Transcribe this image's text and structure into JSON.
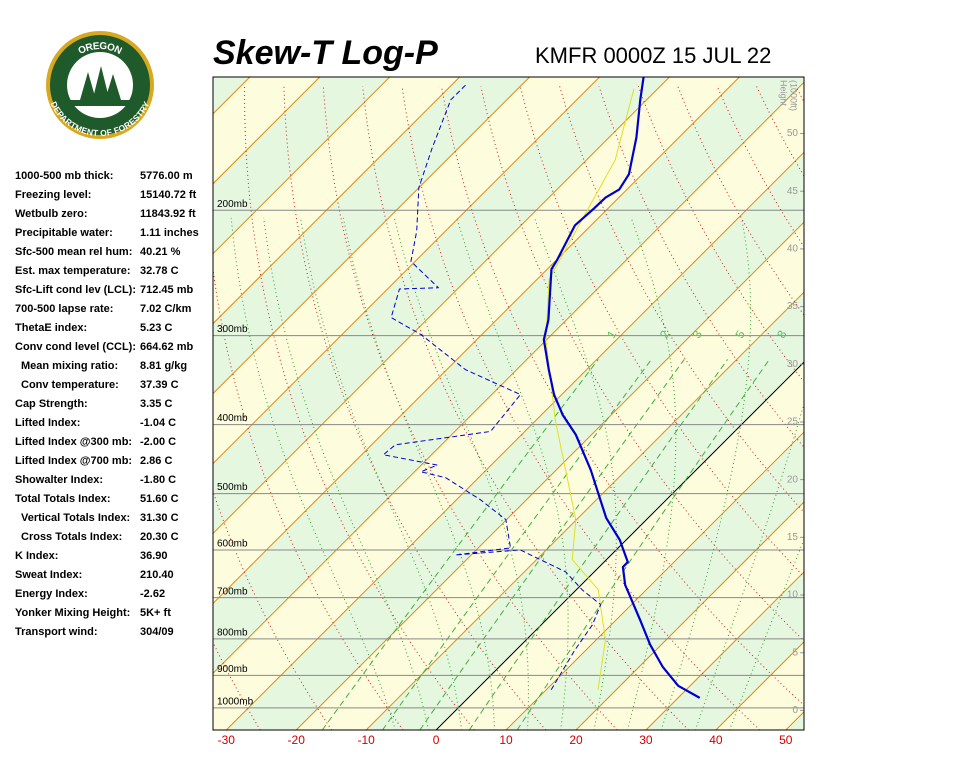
{
  "logo": {
    "top": "OREGON",
    "bottom": "DEPARTMENT OF FORESTRY"
  },
  "indices": [
    [
      "1000-500 mb thick:",
      "5776.00 m"
    ],
    [
      "Freezing level:",
      "15140.72 ft"
    ],
    [
      "Wetbulb zero:",
      "11843.92 ft"
    ],
    [
      "Precipitable water:",
      "1.11 inches"
    ],
    [
      "Sfc-500 mean rel hum:",
      "40.21 %"
    ],
    [
      "Est. max temperature:",
      "32.78 C"
    ],
    [
      "Sfc-Lift cond lev (LCL):",
      "712.45 mb"
    ],
    [
      "700-500 lapse rate:",
      "7.02 C/km"
    ],
    [
      "ThetaE index:",
      "5.23 C"
    ],
    [
      "Conv cond level (CCL):",
      "664.62 mb"
    ],
    [
      "Mean mixing ratio:",
      "8.81 g/kg"
    ],
    [
      "Conv temperature:",
      "37.39 C"
    ],
    [
      "Cap Strength:",
      "3.35 C"
    ],
    [
      "Lifted Index:",
      "-1.04 C"
    ],
    [
      "Lifted Index @300 mb:",
      "-2.00 C"
    ],
    [
      "Lifted Index @700 mb:",
      "2.86 C"
    ],
    [
      "Showalter Index:",
      "-1.80 C"
    ],
    [
      "Total Totals Index:",
      "51.60 C"
    ],
    [
      "Vertical Totals Index:",
      "31.30 C"
    ],
    [
      "Cross Totals Index:",
      "20.30 C"
    ],
    [
      "K Index:",
      "36.90"
    ],
    [
      "Sweat Index:",
      "210.40"
    ],
    [
      "Energy Index:",
      "-2.62"
    ],
    [
      "Yonker Mixing Height:",
      "5K+ ft"
    ],
    [
      "Transport wind:",
      "304/09"
    ]
  ],
  "chart_data": {
    "type": "skewt",
    "title": "Skew-T Log-P",
    "subtitle": "KMFR 0000Z 15 JUL 22",
    "xlim": [
      -31.9,
      52.6
    ],
    "xticks": [
      -30,
      -20,
      -10,
      0,
      10,
      20,
      30,
      40,
      50
    ],
    "plim": [
      1074,
      130
    ],
    "pticks": [
      {
        "value": 200,
        "label": "200mb"
      },
      {
        "value": 300,
        "label": "300mb"
      },
      {
        "value": 400,
        "label": "400mb"
      },
      {
        "value": 500,
        "label": "500mb"
      },
      {
        "value": 600,
        "label": "600mb"
      },
      {
        "value": 700,
        "label": "700mb"
      },
      {
        "value": 800,
        "label": "800mb"
      },
      {
        "value": 900,
        "label": "900mb"
      },
      {
        "value": 1000,
        "label": "1000mb"
      }
    ],
    "height_label": [
      "Height",
      "(1000ft)"
    ],
    "hlim": [
      -1.7,
      54.9
    ],
    "hticks": [
      0,
      5,
      10,
      15,
      20,
      25,
      30,
      35,
      40,
      45,
      50
    ],
    "mixing_ratios": [
      1,
      2,
      3,
      5,
      8
    ],
    "series": [
      {
        "color": "#0000cc",
        "pressure": [
          968,
          931,
          876,
          815,
          752,
          698,
          672,
          634,
          624,
          581,
          541,
          463,
          413,
          388,
          363,
          335,
          304,
          285,
          242,
          235,
          210,
          199,
          192,
          187,
          178,
          158,
          140,
          130
        ],
        "temperature": [
          33.1,
          28.3,
          23.4,
          18.4,
          13.4,
          8.7,
          6.3,
          3.4,
          3.4,
          -0.9,
          -6.0,
          -15.1,
          -22.3,
          -26.9,
          -31.1,
          -35.4,
          -40.4,
          -42.6,
          -49.4,
          -49.9,
          -52.3,
          -52.0,
          -51.9,
          -51.1,
          -51.9,
          -56.1,
          -60.9,
          -63.7
        ]
      },
      {
        "color": "#0000cc",
        "pressure": [
          943,
          829,
          764,
          716,
          683,
          644,
          600,
          610,
          596,
          544,
          510,
          475,
          466,
          456,
          441,
          427,
          409,
          363,
          335,
          299,
          283,
          258,
          257,
          236,
          214,
          186,
          164,
          140,
          133
        ],
        "temperature": [
          10.7,
          8.4,
          7.3,
          5.6,
          0.9,
          -4.1,
          -13.7,
          -22.3,
          -15.4,
          -20.1,
          -26.6,
          -34.7,
          -39.1,
          -37.7,
          -46.9,
          -46.6,
          -34.9,
          -35.9,
          -47.3,
          -58.7,
          -65.4,
          -68.3,
          -62.9,
          -70.6,
          -74.1,
          -80.0,
          -83.7,
          -88.0,
          -88.0
        ]
      },
      {
        "color": "#e0e020",
        "pressure": [
          943,
          802,
          682,
          619,
          544,
          463,
          394,
          304,
          250,
          170,
          135
        ],
        "temperature": [
          17.4,
          11.3,
          3.1,
          -4.9,
          -10.1,
          -18.7,
          -27.3,
          -40.1,
          -48.3,
          -55.9,
          -63.4
        ]
      }
    ]
  }
}
